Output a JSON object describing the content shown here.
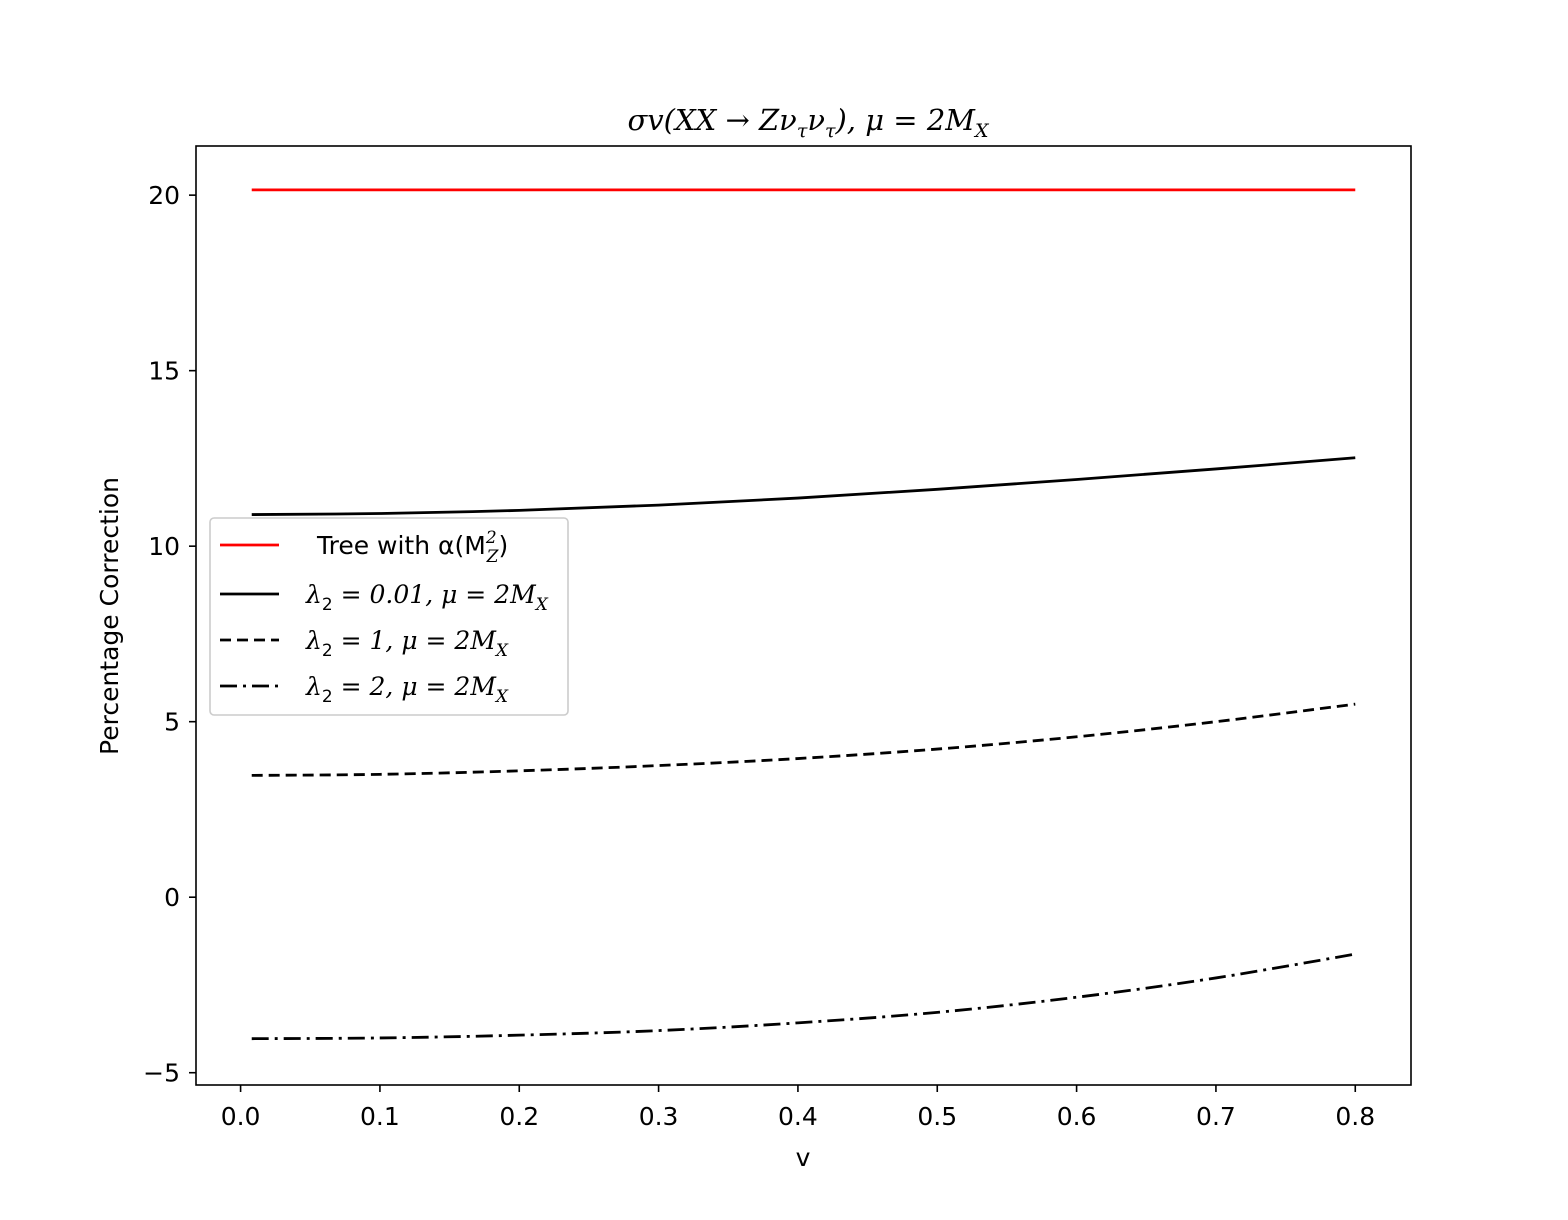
{
  "chart_data": {
    "type": "line",
    "title": {
      "pre": "σv(XX → Zν",
      "sub1": "τ",
      "mid": "ν",
      "sub2": "τ",
      "post": "), μ = 2M",
      "sub3": "X"
    },
    "xlabel": "v",
    "ylabel": "Percentage Correction",
    "xlim": [
      -0.032,
      0.84
    ],
    "ylim": [
      -5.35,
      21.4
    ],
    "xticks": [
      0.0,
      0.1,
      0.2,
      0.3,
      0.4,
      0.5,
      0.6,
      0.7,
      0.8
    ],
    "xtick_labels": [
      "0.0",
      "0.1",
      "0.2",
      "0.3",
      "0.4",
      "0.5",
      "0.6",
      "0.7",
      "0.8"
    ],
    "yticks": [
      -5,
      0,
      5,
      10,
      15,
      20
    ],
    "ytick_labels": [
      "−5",
      "0",
      "5",
      "10",
      "15",
      "20"
    ],
    "grid": false,
    "legend_position": "center-left",
    "x": [
      0.008,
      0.1,
      0.2,
      0.3,
      0.4,
      0.5,
      0.6,
      0.7,
      0.8
    ],
    "series": [
      {
        "name": "Tree with α(M_Z^2)",
        "legend": {
          "pre": "Tree with α(M",
          "sub": "Z",
          "sup": "2",
          "post": ")"
        },
        "color": "#ff0000",
        "style": "solid",
        "values": [
          20.15,
          20.15,
          20.15,
          20.15,
          20.15,
          20.15,
          20.15,
          20.15,
          20.15
        ]
      },
      {
        "name": "λ2 = 0.01, μ = 2MX",
        "legend": {
          "pre": "λ",
          "sub": "2",
          "post": " = 0.01, μ = 2M",
          "sub2": "X"
        },
        "color": "#000000",
        "style": "solid",
        "values": [
          10.9,
          10.93,
          11.02,
          11.17,
          11.37,
          11.62,
          11.9,
          12.2,
          12.52
        ]
      },
      {
        "name": "λ2 = 1, μ = 2MX",
        "legend": {
          "pre": "λ",
          "sub": "2",
          "post": " = 1, μ = 2M",
          "sub2": "X"
        },
        "color": "#000000",
        "style": "dashed",
        "values": [
          3.47,
          3.5,
          3.6,
          3.75,
          3.95,
          4.22,
          4.57,
          5.0,
          5.5
        ]
      },
      {
        "name": "λ2 = 2, μ = 2MX",
        "legend": {
          "pre": "λ",
          "sub": "2",
          "post": " = 2, μ = 2M",
          "sub2": "X"
        },
        "color": "#000000",
        "style": "dashdot",
        "values": [
          -4.03,
          -4.01,
          -3.93,
          -3.8,
          -3.58,
          -3.28,
          -2.85,
          -2.3,
          -1.62
        ]
      }
    ]
  }
}
